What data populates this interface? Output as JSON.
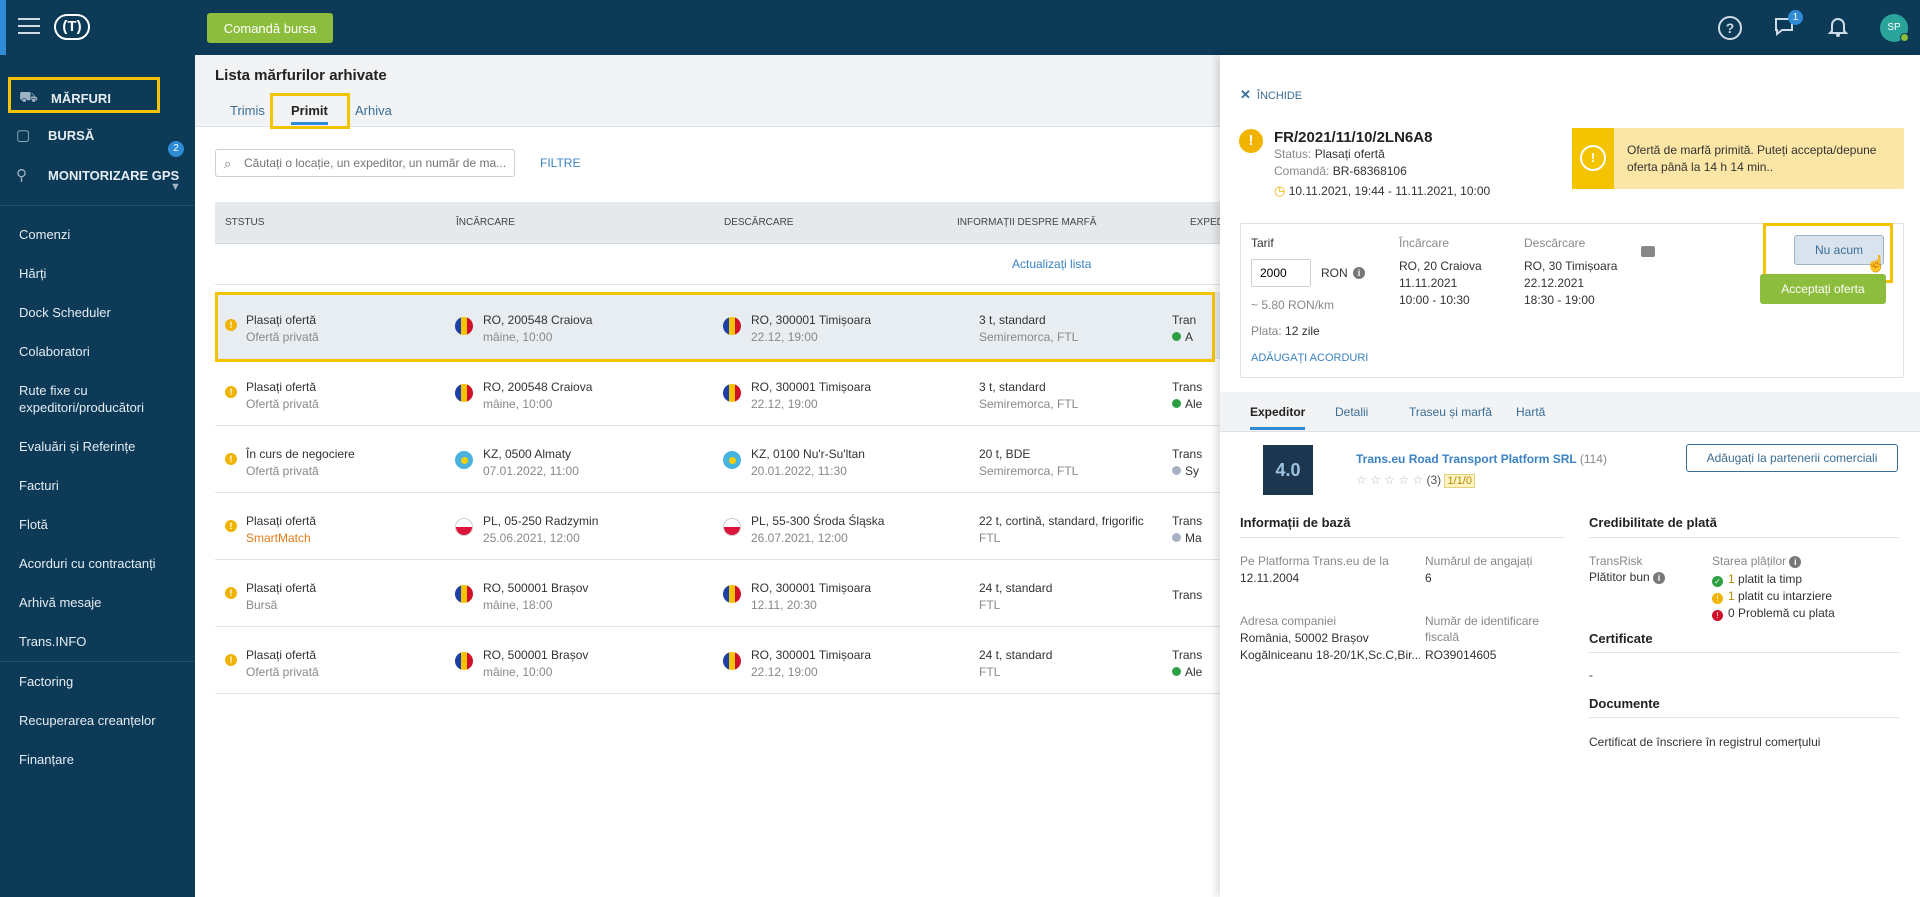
{
  "header": {
    "logo_text": "(T)",
    "command_button": "Comandă bursa",
    "help_icon": "?",
    "chat_badge": "1",
    "avatar_initials": "SP"
  },
  "sidebar": {
    "main_items": [
      {
        "label": "MĂRFURI",
        "badge": "2",
        "icon": "truck-icon"
      },
      {
        "label": "BURSĂ",
        "icon": "box-icon"
      },
      {
        "label": "MONITORIZARE GPS",
        "icon": "satellite-icon"
      }
    ],
    "items": [
      "Comenzi",
      "Hărți",
      "Dock Scheduler",
      "Colaboratori",
      "Rute fixe cu expeditori/producători",
      "Evaluări și Referințe",
      "Facturi",
      "Flotă",
      "Acorduri cu contractanți",
      "Arhivă mesaje",
      "Trans.INFO",
      "Factoring",
      "Recuperarea creanțelor",
      "Finanțare"
    ]
  },
  "main": {
    "title": "Lista mărfurilor arhivate",
    "tabs": [
      "Trimis",
      "Primit",
      "Arhiva"
    ],
    "active_tab": "Primit",
    "search_placeholder": "Căutați o locație, un expeditor, un număr de ma...",
    "filters": "FILTRE",
    "columns": [
      "STSTUS",
      "ÎNCĂRCARE",
      "DESCĂRCARE",
      "INFORMAȚII DESPRE MARFĂ",
      "EXPED"
    ],
    "refresh": "Actualizați lista",
    "rows": [
      {
        "status": "Plasați ofertă",
        "status_sub": "Ofertă privată",
        "load_flag": "ro",
        "load": "RO, 200548 Craiova",
        "load_date": "mâine, 10:00",
        "unload_flag": "ro",
        "unload": "RO, 300001 Timișoara",
        "unload_date": "22.12, 19:00",
        "info": "3 t, standard",
        "info_sub": "Semiremorca, FTL",
        "exp": "Tran",
        "exp_sub": "A"
      },
      {
        "status": "Plasați ofertă",
        "status_sub": "Ofertă privată",
        "load_flag": "ro",
        "load": "RO, 200548 Craiova",
        "load_date": "mâine, 10:00",
        "unload_flag": "ro",
        "unload": "RO, 300001 Timișoara",
        "unload_date": "22.12, 19:00",
        "info": "3 t, standard",
        "info_sub": "Semiremorca, FTL",
        "exp": "Trans",
        "exp_sub": "Ale"
      },
      {
        "status": "În curs de negociere",
        "status_sub": "Ofertă privată",
        "load_flag": "kz",
        "load": "KZ, 0500 Almaty",
        "load_date": "07.01.2022, 11:00",
        "unload_flag": "kz",
        "unload": "KZ, 0100 Nu'r-Su'ltan",
        "unload_date": "20.01.2022, 11:30",
        "info": "20 t, BDE",
        "info_sub": "Semiremorca, FTL",
        "exp": "Trans",
        "exp_sub": "Sy"
      },
      {
        "status": "Plasați ofertă",
        "status_sub": "SmartMatch",
        "load_flag": "pl",
        "load": "PL, 05-250 Radzymin",
        "load_date": "25.06.2021, 12:00",
        "unload_flag": "pl",
        "unload": "PL, 55-300 Środa Śląska",
        "unload_date": "26.07.2021, 12:00",
        "info": "22 t, cortină, standard, frigorific",
        "info_sub": "FTL",
        "exp": "Trans",
        "exp_sub": "Ma"
      },
      {
        "status": "Plasați ofertă",
        "status_sub": "Bursă",
        "load_flag": "ro",
        "load": "RO, 500001 Brașov",
        "load_date": "mâine, 18:00",
        "unload_flag": "ro",
        "unload": "RO, 300001 Timișoara",
        "unload_date": "12.11, 20:30",
        "info": "24 t, standard",
        "info_sub": "FTL",
        "exp": "Trans",
        "exp_sub": ""
      },
      {
        "status": "Plasați ofertă",
        "status_sub": "Ofertă privată",
        "load_flag": "ro",
        "load": "RO, 500001 Brașov",
        "load_date": "mâine, 10:00",
        "unload_flag": "ro",
        "unload": "RO, 300001 Timișoara",
        "unload_date": "22.12, 19:00",
        "info": "24 t, standard",
        "info_sub": "FTL",
        "exp": "Trans",
        "exp_sub": "Ale"
      }
    ]
  },
  "panel": {
    "close": "ÎNCHIDE",
    "ref": "FR/2021/11/10/2LN6A8",
    "status_label": "Status:",
    "status_value": "Plasați ofertă",
    "order_label": "Comandă:",
    "order_value": "BR-68368106",
    "period": "10.11.2021, 19:44 - 11.11.2021, 10:00",
    "alert": "Ofertă de marfă primită. Puteți accepta/depune oferta până la 14 h 14 min..",
    "offer": {
      "tarif_label": "Tarif",
      "tarif_value": "2000",
      "currency": "RON",
      "per_km": "~ 5.80 RON/km",
      "payment_label": "Plata:",
      "payment_value": "12 zile",
      "add_agreements": "ADĂUGAȚI ACORDURI",
      "load_label": "Încărcare",
      "load_place": "RO, 20 Craiova",
      "load_date": "11.11.2021",
      "load_time": "10:00 - 10:30",
      "unload_label": "Descărcare",
      "unload_place": "RO, 30 Timișoara",
      "unload_date": "22.12.2021",
      "unload_time": "18:30 - 19:00",
      "not_now": "Nu acum",
      "accept": "Acceptați oferta"
    },
    "tabs": [
      "Expeditor",
      "Detalii",
      "Traseu și marfă",
      "Hartă"
    ],
    "company": {
      "logo_text": "4.0",
      "name": "Trans.eu Road Transport Platform SRL",
      "count": "(114)",
      "stars": "☆ ☆ ☆ ☆ ☆",
      "reviews": "(3)",
      "rating": "1/1/0",
      "partner_button": "Adăugați la partenerii comerciali"
    },
    "basic": {
      "title": "Informații de bază",
      "platform_label": "Pe Platforma Trans.eu de la",
      "platform_value": "12.11.2004",
      "employees_label": "Numărul de angajați",
      "employees_value": "6",
      "address_label": "Adresa companiei",
      "address_line1": "România, 50002 Brașov",
      "address_line2": "Kogălniceanu 18-20/1K,Sc.C,Bir....",
      "id_label": "Număr de identificare fiscală",
      "id_value": "RO39014605"
    },
    "credit": {
      "title": "Credibilitate de plată",
      "transrisk_label": "TransRisk",
      "transrisk_value": "Plătitor bun",
      "payments_label": "Starea plăților",
      "paid_on_time": "platit la timp",
      "paid_on_time_n": "1",
      "paid_late": "platit cu intarziere",
      "paid_late_n": "1",
      "problem": "Problemă cu plata",
      "problem_n": "0"
    },
    "certificates": {
      "title": "Certificate",
      "value": "-"
    },
    "documents": {
      "title": "Documente",
      "value": "Certificat de înscriere în registrul comerțului"
    }
  }
}
